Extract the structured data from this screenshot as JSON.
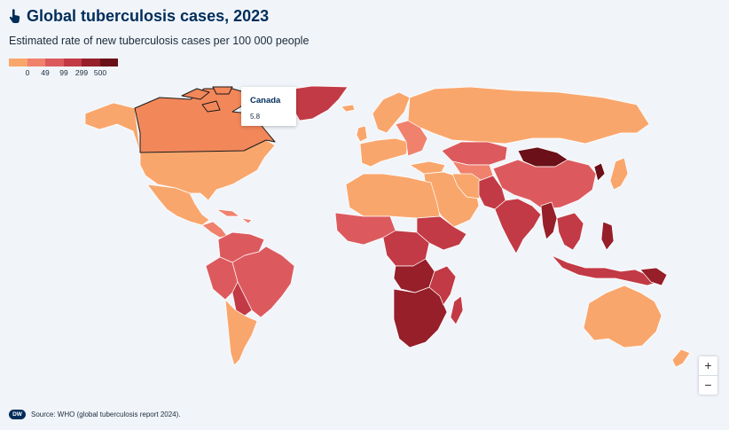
{
  "header": {
    "title": "Global tuberculosis cases, 2023",
    "subtitle": "Estimated rate of new tuberculosis cases per 100 000 people"
  },
  "legend": {
    "labels": [
      "0",
      "49",
      "99",
      "299",
      "500"
    ],
    "colors": [
      "#f9a66c",
      "#f0816d",
      "#dc5a5e",
      "#c23a45",
      "#961f2a",
      "#6b1018"
    ]
  },
  "map": {
    "ocean_color": "#f1f5fa",
    "border_color": "#ffffff",
    "highlighted_country": "Canada"
  },
  "tooltip": {
    "country": "Canada",
    "value": "5.8"
  },
  "zoom": {
    "zoom_in_label": "+",
    "zoom_out_label": "−"
  },
  "footer": {
    "logo_text": "DW",
    "source": "Source: WHO (global tuberculosis report 2024)."
  }
}
